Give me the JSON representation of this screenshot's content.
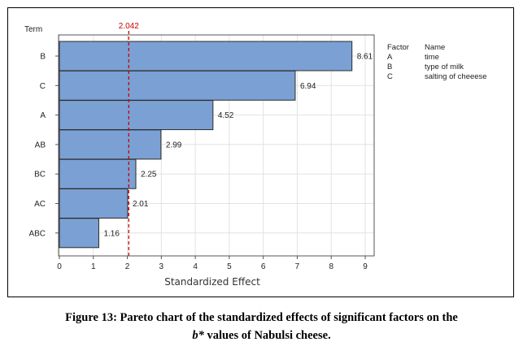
{
  "chart_data": {
    "type": "bar",
    "orientation": "horizontal",
    "y_axis_title": "Term",
    "xlabel": "Standardized Effect",
    "categories": [
      "B",
      "C",
      "A",
      "AB",
      "BC",
      "AC",
      "ABC"
    ],
    "values": [
      8.61,
      6.94,
      4.52,
      2.99,
      2.25,
      2.01,
      1.16
    ],
    "value_labels": [
      "8.61",
      "6.94",
      "4.52",
      "2.99",
      "2.25",
      "2.01",
      "1.16"
    ],
    "xlim": [
      0,
      9
    ],
    "xticks": [
      0,
      1,
      2,
      3,
      4,
      5,
      6,
      7,
      8,
      9
    ],
    "reference_line": {
      "value": 2.042,
      "label": "2.042"
    },
    "grid": true,
    "legend": {
      "position": "right",
      "header": {
        "factor": "Factor",
        "name": "Name"
      },
      "entries": [
        {
          "factor": "A",
          "name": "time"
        },
        {
          "factor": "B",
          "name": "type of milk"
        },
        {
          "factor": "C",
          "name": "salting of cheeese"
        }
      ]
    },
    "colors": {
      "bar": "#7ba0d4",
      "bar_edge": "#2b2b2b",
      "reference": "#cc0000",
      "grid": "#e2e2e2"
    }
  },
  "caption": {
    "line1": "Figure 13: Pareto chart of the standardized effects of significant factors on the",
    "line2_var": "b*",
    "line2_rest": " values of Nabulsi cheese."
  }
}
